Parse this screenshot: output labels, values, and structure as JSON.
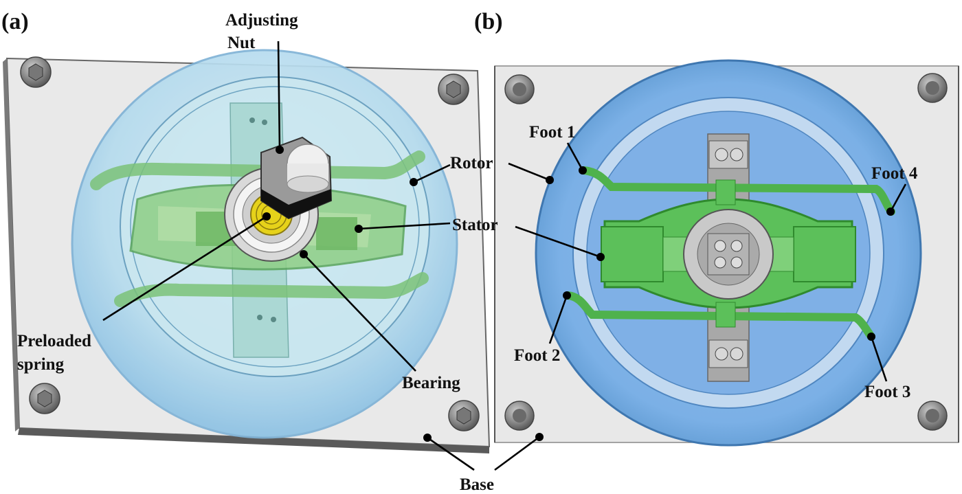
{
  "panels": {
    "a": {
      "label": "(a)"
    },
    "b": {
      "label": "(b)"
    }
  },
  "labels": {
    "adjusting_nut_line1": "Adjusting",
    "adjusting_nut_line2": "Nut",
    "rotor_a": "Rotor",
    "stator_a": "Stator",
    "preloaded_line1": "Preloaded",
    "preloaded_line2": "spring",
    "bearing": "Bearing",
    "base": "Base",
    "foot1": "Foot 1",
    "foot2": "Foot 2",
    "foot3": "Foot 3",
    "foot4": "Foot 4"
  },
  "colors": {
    "base_plate": "#e6e6e6",
    "base_edge": "#555555",
    "rotor_blue": "#8fc1e8",
    "rotor_dark": "#5b97cf",
    "stator_green": "#6fc86f",
    "stator_dark": "#3c9a3c",
    "bolt_gray": "#8a8a8a",
    "spring_yellow": "#e6d21a"
  }
}
